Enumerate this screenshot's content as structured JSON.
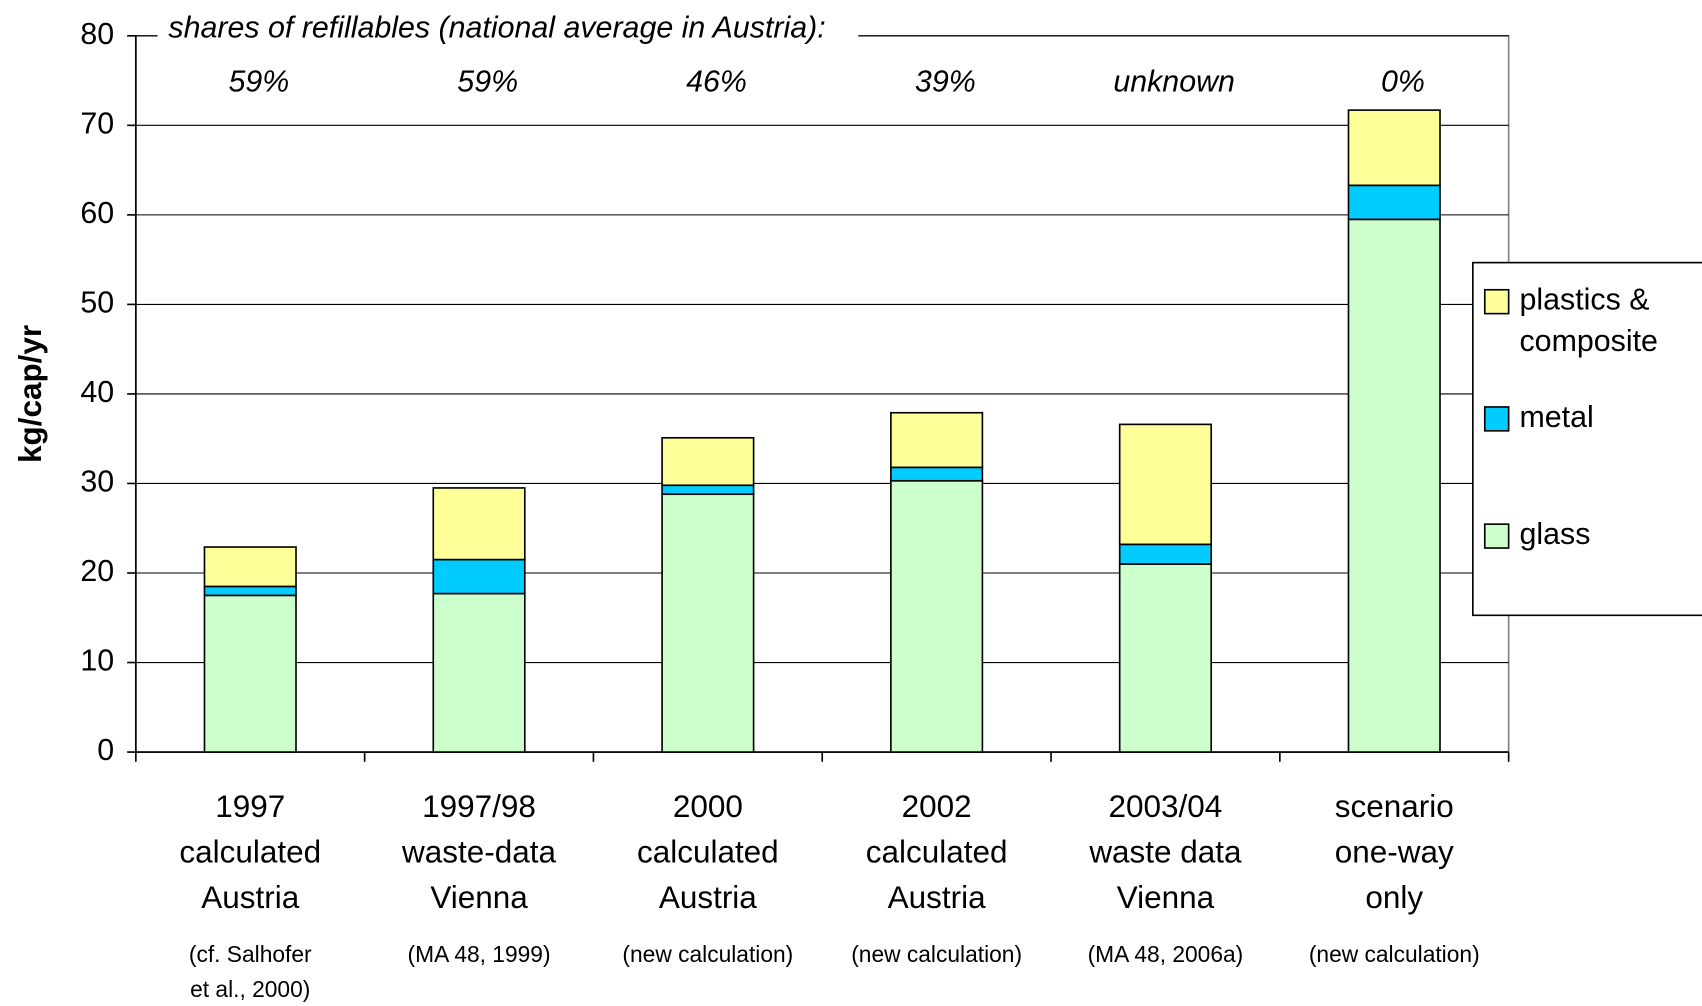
{
  "chart_data": {
    "type": "stacked_bar",
    "annotation_title": "shares of refillables (national average in Austria):",
    "refillable_shares": [
      "59%",
      "59%",
      "46%",
      "39%",
      "unknown",
      "0%"
    ],
    "ylabel": "kg/cap/yr",
    "categories": [
      [
        "1997",
        "calculated",
        "Austria"
      ],
      [
        "1997/98",
        "waste-data",
        "Vienna"
      ],
      [
        "2000",
        "calculated",
        "Austria"
      ],
      [
        "2002",
        "calculated",
        "Austria"
      ],
      [
        "2003/04",
        "waste data",
        "Vienna"
      ],
      [
        "scenario",
        "one-way",
        "only"
      ]
    ],
    "sources": [
      [
        "(cf. Salhofer",
        "et al., 2000)"
      ],
      [
        "(MA 48, 1999)"
      ],
      [
        "(new calculation)"
      ],
      [
        "(new calculation)"
      ],
      [
        "(MA 48, 2006a)"
      ],
      [
        "(new calculation)"
      ]
    ],
    "series": [
      {
        "name": [
          "glass"
        ],
        "color": "#ccffcc",
        "values": [
          17.5,
          17.7,
          28.8,
          30.3,
          21.0,
          59.5
        ]
      },
      {
        "name": [
          "metal"
        ],
        "color": "#00ccff",
        "values": [
          1.0,
          3.8,
          1.0,
          1.5,
          2.2,
          3.8
        ]
      },
      {
        "name": [
          "plastics &",
          "composite"
        ],
        "color": "#ffff99",
        "values": [
          4.4,
          8.0,
          5.3,
          6.1,
          13.4,
          8.4
        ]
      }
    ],
    "ylim": [
      0,
      80
    ],
    "yticks": [
      0,
      10,
      20,
      30,
      40,
      50,
      60,
      70,
      80
    ],
    "grid": true,
    "legend": "right"
  }
}
